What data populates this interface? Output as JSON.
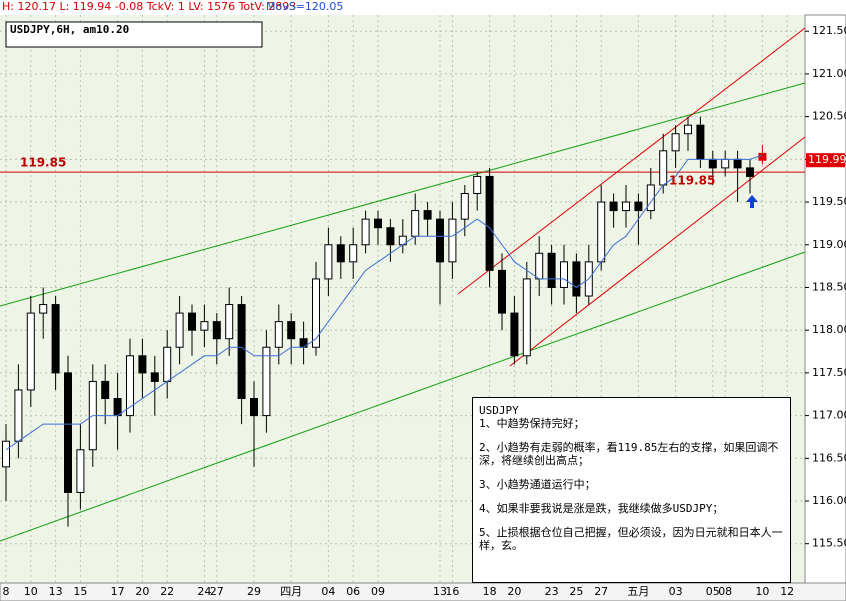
{
  "chart_data": {
    "type": "candlestick",
    "header": "H: 120.17 L: 119.94 -0.08 TckV: 1 LV: 1576 TotV: 2893",
    "header_ma": "MovS=120.05",
    "symbol_label": "USDJPY,6H, am10.20",
    "level": 119.85,
    "ylim": [
      115.04,
      121.69
    ],
    "yticks": [
      {
        "value": 115.5,
        "label": "115.50"
      },
      {
        "value": 116,
        "label": "116.00"
      },
      {
        "value": 116.5,
        "label": "116.50"
      },
      {
        "value": 117,
        "label": "117.00"
      },
      {
        "value": 117.5,
        "label": "117.50"
      },
      {
        "value": 118,
        "label": "118.00"
      },
      {
        "value": 118.5,
        "label": "118.50"
      },
      {
        "value": 119,
        "label": "119.00"
      },
      {
        "value": 119.5,
        "label": "119.50"
      },
      {
        "value": 120,
        "label": "120.00"
      },
      {
        "value": 120.5,
        "label": "120.50"
      },
      {
        "value": 121,
        "label": "121.00"
      },
      {
        "value": 121.5,
        "label": "121.50"
      }
    ],
    "grid": true,
    "categories": [
      "8",
      null,
      "10",
      null,
      "13",
      null,
      "15",
      null,
      null,
      "17",
      null,
      "20",
      null,
      "22",
      null,
      null,
      "24",
      "27",
      null,
      null,
      "29",
      null,
      null,
      "四月",
      null,
      null,
      "04",
      null,
      "06",
      null,
      "09",
      null,
      null,
      null,
      null,
      "13",
      "16",
      null,
      null,
      "18",
      null,
      "20",
      null,
      null,
      "23",
      null,
      "25",
      null,
      "27",
      null,
      null,
      "五月",
      null,
      null,
      "03",
      null,
      null,
      "05",
      "08",
      null,
      null,
      "10",
      null,
      "12"
    ],
    "ohlc": [
      [
        116.4,
        116.9,
        116.0,
        116.7
      ],
      [
        116.7,
        117.6,
        116.5,
        117.3
      ],
      [
        117.3,
        118.4,
        117.1,
        118.2
      ],
      [
        118.2,
        118.5,
        117.9,
        118.3
      ],
      [
        118.3,
        118.4,
        117.3,
        117.5
      ],
      [
        117.5,
        117.7,
        115.7,
        116.1
      ],
      [
        116.1,
        116.9,
        115.9,
        116.6
      ],
      [
        116.6,
        117.6,
        116.4,
        117.4
      ],
      [
        117.4,
        117.6,
        116.9,
        117.2
      ],
      [
        117.2,
        117.5,
        116.6,
        117.0
      ],
      [
        117.0,
        117.9,
        116.8,
        117.7
      ],
      [
        117.7,
        117.9,
        117.2,
        117.5
      ],
      [
        117.5,
        117.7,
        117.0,
        117.4
      ],
      [
        117.4,
        118.0,
        117.2,
        117.8
      ],
      [
        117.8,
        118.4,
        117.6,
        118.2
      ],
      [
        118.2,
        118.3,
        117.7,
        118.0
      ],
      [
        118.0,
        118.3,
        117.8,
        118.1
      ],
      [
        118.1,
        118.2,
        117.6,
        117.9
      ],
      [
        117.9,
        118.5,
        117.7,
        118.3
      ],
      [
        118.3,
        118.4,
        116.9,
        117.2
      ],
      [
        117.2,
        117.4,
        116.4,
        117.0
      ],
      [
        117.0,
        118.0,
        116.8,
        117.8
      ],
      [
        117.8,
        118.3,
        117.6,
        118.1
      ],
      [
        118.1,
        118.2,
        117.6,
        117.9
      ],
      [
        117.9,
        118.1,
        117.6,
        117.8
      ],
      [
        117.8,
        118.8,
        117.7,
        118.6
      ],
      [
        118.6,
        119.2,
        118.4,
        119.0
      ],
      [
        119.0,
        119.1,
        118.6,
        118.8
      ],
      [
        118.8,
        119.2,
        118.6,
        119.0
      ],
      [
        119.0,
        119.4,
        118.9,
        119.3
      ],
      [
        119.3,
        119.4,
        119.0,
        119.2
      ],
      [
        119.2,
        119.3,
        118.8,
        119.0
      ],
      [
        119.0,
        119.3,
        118.9,
        119.1
      ],
      [
        119.1,
        119.6,
        119.0,
        119.4
      ],
      [
        119.4,
        119.5,
        119.1,
        119.3
      ],
      [
        119.3,
        119.4,
        118.3,
        118.8
      ],
      [
        118.8,
        119.5,
        118.6,
        119.3
      ],
      [
        119.3,
        119.7,
        119.1,
        119.6
      ],
      [
        119.6,
        119.85,
        119.4,
        119.8
      ],
      [
        119.8,
        119.9,
        118.5,
        118.7
      ],
      [
        118.7,
        118.9,
        118.0,
        118.2
      ],
      [
        118.2,
        118.4,
        117.6,
        117.7
      ],
      [
        117.7,
        118.8,
        117.6,
        118.6
      ],
      [
        118.6,
        119.1,
        118.4,
        118.9
      ],
      [
        118.9,
        119.0,
        118.3,
        118.5
      ],
      [
        118.5,
        119.0,
        118.3,
        118.8
      ],
      [
        118.8,
        118.9,
        118.2,
        118.4
      ],
      [
        118.4,
        119.0,
        118.3,
        118.8
      ],
      [
        118.8,
        119.7,
        118.7,
        119.5
      ],
      [
        119.5,
        119.6,
        119.2,
        119.4
      ],
      [
        119.4,
        119.7,
        119.2,
        119.5
      ],
      [
        119.5,
        119.6,
        119.0,
        119.4
      ],
      [
        119.4,
        119.9,
        119.3,
        119.7
      ],
      [
        119.7,
        120.3,
        119.6,
        120.1
      ],
      [
        120.1,
        120.4,
        119.9,
        120.3
      ],
      [
        120.3,
        120.5,
        120.1,
        120.4
      ],
      [
        120.4,
        120.5,
        119.9,
        120.0
      ],
      [
        120.0,
        120.1,
        119.7,
        119.9
      ],
      [
        119.9,
        120.1,
        119.8,
        120.0
      ],
      [
        120.0,
        120.1,
        119.5,
        119.9
      ],
      [
        119.9,
        120.0,
        119.6,
        119.8
      ],
      [
        120.07,
        120.17,
        119.94,
        119.99
      ],
      null,
      null
    ],
    "ma": [
      116.6,
      116.7,
      116.8,
      116.9,
      116.9,
      116.9,
      116.9,
      117.0,
      117.0,
      117.0,
      117.1,
      117.2,
      117.3,
      117.4,
      117.5,
      117.6,
      117.7,
      117.7,
      117.8,
      117.8,
      117.7,
      117.7,
      117.7,
      117.8,
      117.8,
      117.9,
      118.1,
      118.3,
      118.5,
      118.7,
      118.8,
      118.9,
      119.0,
      119.1,
      119.1,
      119.1,
      119.1,
      119.2,
      119.3,
      119.2,
      119.0,
      118.8,
      118.7,
      118.6,
      118.6,
      118.6,
      118.5,
      118.6,
      118.8,
      119.0,
      119.1,
      119.3,
      119.5,
      119.7,
      119.8,
      120.0,
      120.0,
      120.0,
      120.0,
      120.0,
      120.0,
      120.05,
      null,
      null
    ],
    "ma_color": "#3b6fd6",
    "up_color": "#ffffff",
    "down_color": "#000000",
    "last_color": "#e00000",
    "note": {
      "title": "USDJPY",
      "lines": [
        "1、中趋势保持完好；",
        "2、小趋势有走弱的概率，看119.85左右的支撑，如果回调不深，将继续创出高点；",
        "3、小趋势通道运行中；",
        "4、如果非要我说是涨是跌，我继续做多USDJPY；",
        "5、止损根据仓位自己把握，但必须设，因为日元就和日本人一样，玄。"
      ]
    }
  }
}
